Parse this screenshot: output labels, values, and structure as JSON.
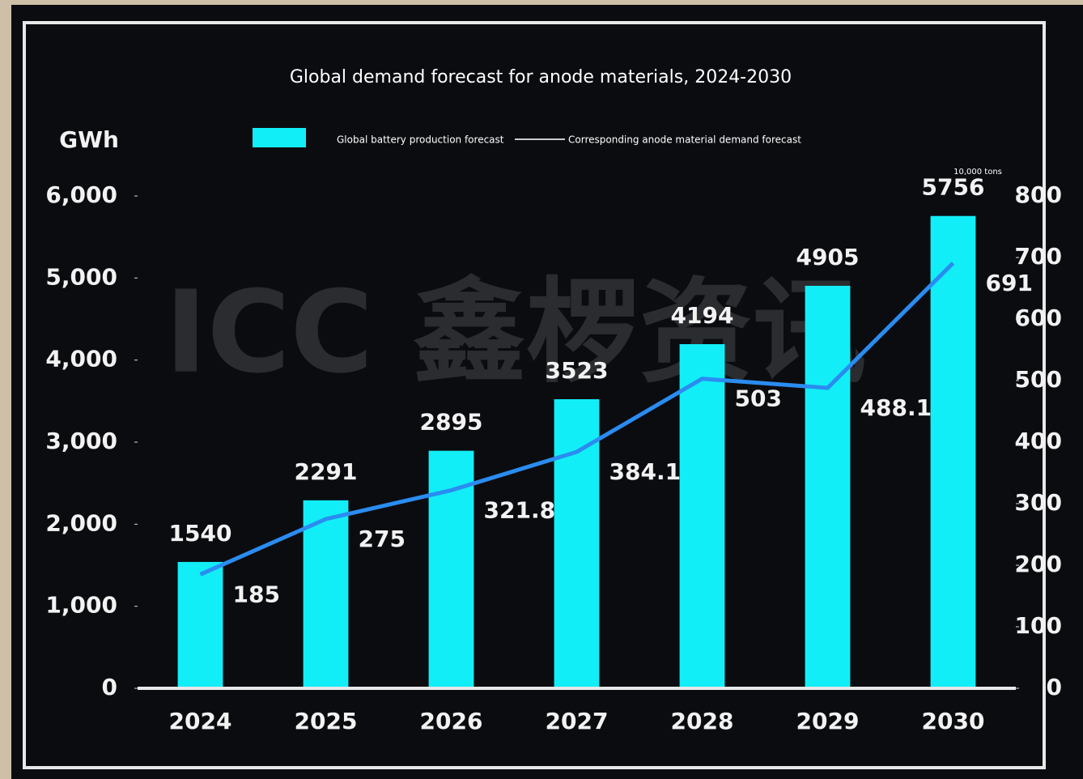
{
  "chart_data": {
    "type": "combo",
    "title": "Global demand forecast for anode materials, 2024-2030",
    "y_label": "GWh",
    "y2_label": "10,000 tons",
    "watermark": "ICC 鑫椤资讯",
    "categories": [
      "2024",
      "2025",
      "2026",
      "2027",
      "2028",
      "2029",
      "2030"
    ],
    "series": [
      {
        "name": "Global battery production forecast",
        "type": "bar",
        "color": "#12eef8",
        "values": [
          1540,
          2291,
          2895,
          3523,
          4194,
          4905,
          5756
        ]
      },
      {
        "name": "Corresponding anode material demand forecast",
        "type": "line",
        "color": "#2a8cf0",
        "axis": "y2",
        "values": [
          185,
          275,
          321.8,
          384.1,
          503,
          488.1,
          691
        ]
      }
    ],
    "ylim": [
      0,
      6000
    ],
    "yticks": [
      0,
      {
        "value": 1000,
        "label": "1,000"
      },
      {
        "value": 2000,
        "label": "2,000"
      },
      {
        "value": 3000,
        "label": "3,000"
      },
      {
        "value": 4000,
        "label": "4,000"
      },
      {
        "value": 5000,
        "label": "5,000"
      },
      {
        "value": 6000,
        "label": "6,000"
      }
    ],
    "y2lim": [
      0,
      800
    ],
    "y2ticks": [
      0,
      100,
      200,
      300,
      400,
      500,
      600,
      700,
      800
    ],
    "grid": false
  }
}
